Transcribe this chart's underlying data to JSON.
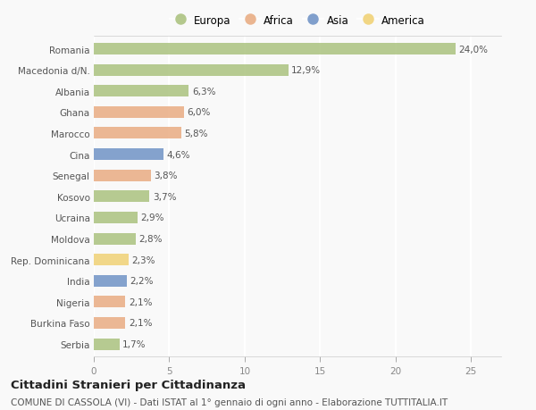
{
  "categories": [
    "Romania",
    "Macedonia d/N.",
    "Albania",
    "Ghana",
    "Marocco",
    "Cina",
    "Senegal",
    "Kosovo",
    "Ucraina",
    "Moldova",
    "Rep. Dominicana",
    "India",
    "Nigeria",
    "Burkina Faso",
    "Serbia"
  ],
  "values": [
    24.0,
    12.9,
    6.3,
    6.0,
    5.8,
    4.6,
    3.8,
    3.7,
    2.9,
    2.8,
    2.3,
    2.2,
    2.1,
    2.1,
    1.7
  ],
  "labels": [
    "24,0%",
    "12,9%",
    "6,3%",
    "6,0%",
    "5,8%",
    "4,6%",
    "3,8%",
    "3,7%",
    "2,9%",
    "2,8%",
    "2,3%",
    "2,2%",
    "2,1%",
    "2,1%",
    "1,7%"
  ],
  "continents": [
    "Europa",
    "Europa",
    "Europa",
    "Africa",
    "Africa",
    "Asia",
    "Africa",
    "Europa",
    "Europa",
    "Europa",
    "America",
    "Asia",
    "Africa",
    "Africa",
    "Europa"
  ],
  "continent_colors": {
    "Europa": "#a8c07a",
    "Africa": "#e8a97e",
    "Asia": "#6b8fc4",
    "America": "#f0d070"
  },
  "legend_items": [
    "Europa",
    "Africa",
    "Asia",
    "America"
  ],
  "title": "Cittadini Stranieri per Cittadinanza",
  "subtitle": "COMUNE DI CASSOLA (VI) - Dati ISTAT al 1° gennaio di ogni anno - Elaborazione TUTTITALIA.IT",
  "xlim": [
    0,
    27
  ],
  "xticks": [
    0,
    5,
    10,
    15,
    20,
    25
  ],
  "background_color": "#f9f9f9",
  "bar_height": 0.55,
  "title_fontsize": 9.5,
  "subtitle_fontsize": 7.5,
  "label_fontsize": 7.5,
  "tick_fontsize": 7.5,
  "legend_fontsize": 8.5
}
